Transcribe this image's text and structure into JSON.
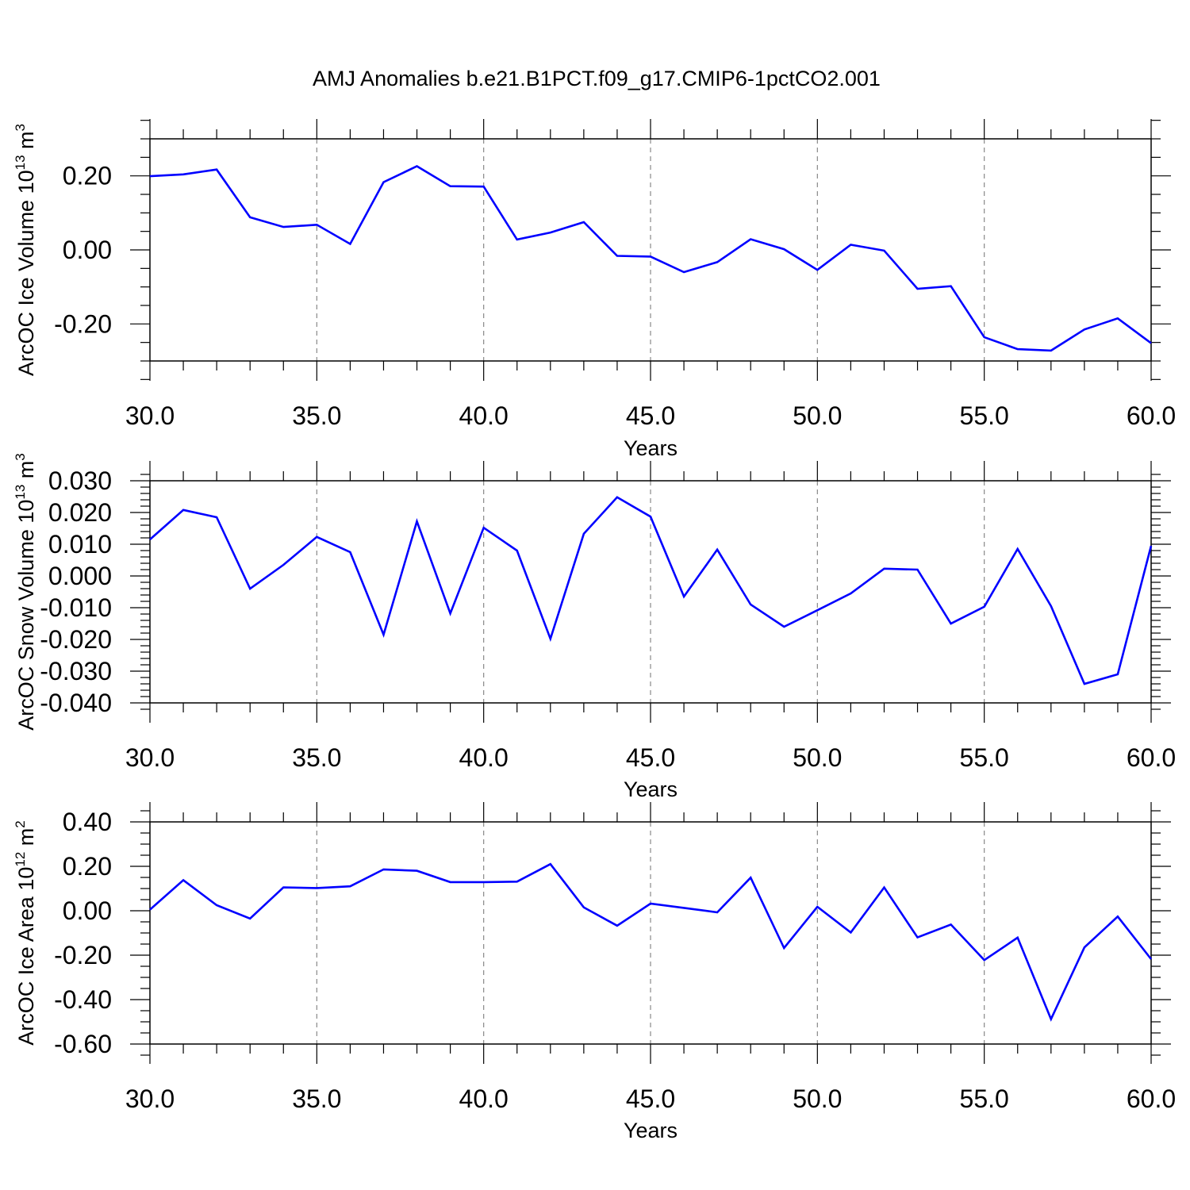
{
  "title": "AMJ Anomalies b.e21.B1PCT.f09_g17.CMIP6-1pctCO2.001",
  "colors": {
    "line": "#0000ff",
    "axis": "#000000",
    "grid": "#888888"
  },
  "chart_data": [
    {
      "type": "line",
      "xlabel": "Years",
      "ylabel": "ArcOC Ice Volume 10",
      "ylabel_exp": "13",
      "ylabel_unit": " m",
      "ylabel_unit_exp": "3",
      "xlim": [
        30,
        60
      ],
      "ylim": [
        -0.3,
        0.3
      ],
      "xticks": [
        30,
        35,
        40,
        45,
        50,
        55,
        60
      ],
      "xtick_labels": [
        "30.0",
        "35.0",
        "40.0",
        "45.0",
        "50.0",
        "55.0",
        "60.0"
      ],
      "yticks": [
        -0.2,
        0.0,
        0.2
      ],
      "ytick_labels": [
        "-0.20",
        "0.00",
        "0.20"
      ],
      "yminor_step": 0.05,
      "grid": "x-dashed",
      "x": [
        30,
        31,
        32,
        33,
        34,
        35,
        36,
        37,
        38,
        39,
        40,
        41,
        42,
        43,
        44,
        45,
        46,
        47,
        48,
        49,
        50,
        51,
        52,
        53,
        54,
        55,
        56,
        57,
        58,
        59,
        60
      ],
      "values": [
        0.199,
        0.204,
        0.217,
        0.088,
        0.062,
        0.068,
        0.016,
        0.183,
        0.226,
        0.172,
        0.171,
        0.028,
        0.047,
        0.075,
        -0.016,
        -0.018,
        -0.06,
        -0.033,
        0.029,
        0.002,
        -0.054,
        0.014,
        -0.002,
        -0.105,
        -0.098,
        -0.236,
        -0.268,
        -0.272,
        -0.215,
        -0.185,
        -0.252
      ]
    },
    {
      "type": "line",
      "xlabel": "Years",
      "ylabel": "ArcOC Snow Volume 10",
      "ylabel_exp": "13",
      "ylabel_unit": " m",
      "ylabel_unit_exp": "3",
      "xlim": [
        30,
        60
      ],
      "ylim": [
        -0.04,
        0.03
      ],
      "xticks": [
        30,
        35,
        40,
        45,
        50,
        55,
        60
      ],
      "xtick_labels": [
        "30.0",
        "35.0",
        "40.0",
        "45.0",
        "50.0",
        "55.0",
        "60.0"
      ],
      "yticks": [
        -0.04,
        -0.03,
        -0.02,
        -0.01,
        0.0,
        0.01,
        0.02,
        0.03
      ],
      "ytick_labels": [
        "-0.040",
        "-0.030",
        "-0.020",
        "-0.010",
        "0.000",
        "0.010",
        "0.020",
        "0.030"
      ],
      "yminor_step": 0.002,
      "grid": "x-dashed",
      "x": [
        30,
        31,
        32,
        33,
        34,
        35,
        36,
        37,
        38,
        39,
        40,
        41,
        42,
        43,
        44,
        45,
        46,
        47,
        48,
        49,
        50,
        51,
        52,
        53,
        54,
        55,
        56,
        57,
        58,
        59,
        60
      ],
      "values": [
        0.0115,
        0.0208,
        0.0185,
        -0.004,
        0.0035,
        0.0123,
        0.0075,
        -0.0185,
        0.0172,
        -0.0118,
        0.0152,
        0.008,
        -0.0198,
        0.0133,
        0.0248,
        0.0187,
        -0.0065,
        0.0083,
        -0.009,
        -0.016,
        -0.0108,
        -0.0055,
        0.0023,
        0.002,
        -0.015,
        -0.0097,
        0.0085,
        -0.0095,
        -0.034,
        -0.031,
        0.0095
      ]
    },
    {
      "type": "line",
      "xlabel": "Years",
      "ylabel": "ArcOC Ice Area 10",
      "ylabel_exp": "12",
      "ylabel_unit": " m",
      "ylabel_unit_exp": "2",
      "xlim": [
        30,
        60
      ],
      "ylim": [
        -0.6,
        0.4
      ],
      "xticks": [
        30,
        35,
        40,
        45,
        50,
        55,
        60
      ],
      "xtick_labels": [
        "30.0",
        "35.0",
        "40.0",
        "45.0",
        "50.0",
        "55.0",
        "60.0"
      ],
      "yticks": [
        -0.6,
        -0.4,
        -0.2,
        0.0,
        0.2,
        0.4
      ],
      "ytick_labels": [
        "-0.60",
        "-0.40",
        "-0.20",
        "0.00",
        "0.20",
        "0.40"
      ],
      "yminor_step": 0.05,
      "grid": "x-dashed",
      "x": [
        30,
        31,
        32,
        33,
        34,
        35,
        36,
        37,
        38,
        39,
        40,
        41,
        42,
        43,
        44,
        45,
        46,
        47,
        48,
        49,
        50,
        51,
        52,
        53,
        54,
        55,
        56,
        57,
        58,
        59,
        60
      ],
      "values": [
        0.005,
        0.138,
        0.025,
        -0.035,
        0.105,
        0.102,
        0.11,
        0.186,
        0.18,
        0.129,
        0.129,
        0.131,
        0.21,
        0.015,
        -0.067,
        0.032,
        0.013,
        -0.007,
        0.149,
        -0.168,
        0.018,
        -0.098,
        0.105,
        -0.12,
        -0.062,
        -0.222,
        -0.121,
        -0.488,
        -0.165,
        -0.026,
        -0.218
      ]
    }
  ]
}
